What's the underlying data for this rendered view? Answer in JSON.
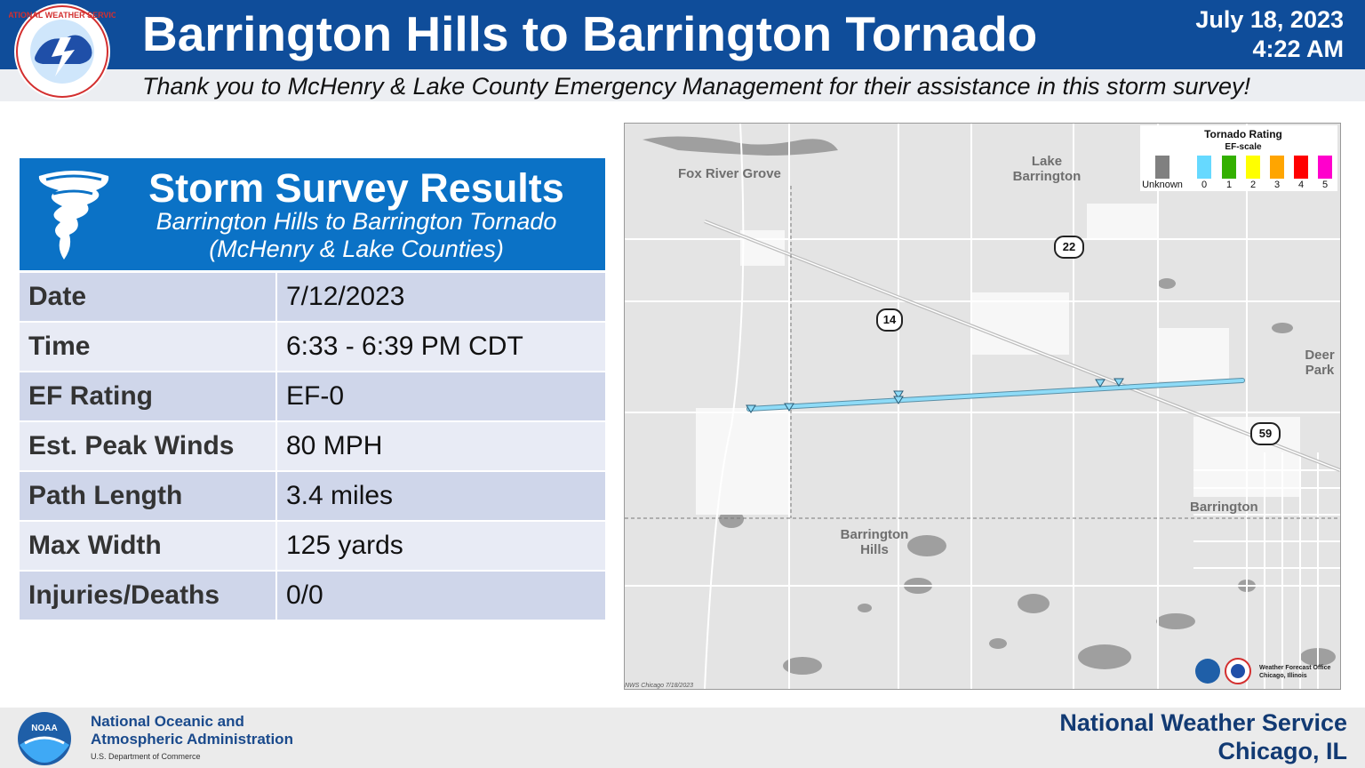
{
  "header": {
    "title": "Barrington Hills to Barrington Tornado",
    "date": "July 18, 2023",
    "time": "4:22 AM",
    "thanks": "Thank you to McHenry & Lake County Emergency Management for their assistance in this storm survey!",
    "logo_text": "NATIONAL WEATHER SERVICE"
  },
  "results": {
    "title": "Storm Survey Results",
    "subtitle_1": "Barrington Hills to Barrington Tornado",
    "subtitle_2": "(McHenry & Lake Counties)",
    "rows": [
      {
        "label": "Date",
        "value": "7/12/2023"
      },
      {
        "label": "Time",
        "value": "6:33 - 6:39 PM CDT"
      },
      {
        "label": "EF Rating",
        "value": "EF-0"
      },
      {
        "label": "Est. Peak Winds",
        "value": "80 MPH"
      },
      {
        "label": "Path Length",
        "value": "3.4 miles"
      },
      {
        "label": "Max Width",
        "value": "125 yards"
      },
      {
        "label": "Injuries/Deaths",
        "value": "0/0"
      }
    ]
  },
  "map": {
    "places": {
      "fox_river_grove": "Fox River Grove",
      "lake_barrington": "Lake Barrington",
      "deer_park": "Deer Park",
      "barrington": "Barrington",
      "barrington_hills": "Barrington Hills"
    },
    "routes": {
      "r22": "22",
      "r14": "14",
      "r59": "59"
    },
    "legend": {
      "title": "Tornado Rating",
      "subtitle": "EF-scale",
      "items": [
        {
          "label": "Unknown",
          "color": "#808080"
        },
        {
          "label": "0",
          "color": "#66d9ff"
        },
        {
          "label": "1",
          "color": "#33b000"
        },
        {
          "label": "2",
          "color": "#ffff00"
        },
        {
          "label": "3",
          "color": "#ffa500"
        },
        {
          "label": "4",
          "color": "#ff0000"
        },
        {
          "label": "5",
          "color": "#ff00cc"
        }
      ]
    },
    "credit": "NWS Chicago 7/18/2023",
    "wfo_line1": "Weather Forecast Office",
    "wfo_line2": "Chicago, Illinois",
    "track_color": "#7fd3f0"
  },
  "footer": {
    "noaa_line1": "National Oceanic and",
    "noaa_line2": "Atmospheric Administration",
    "noaa_dept": "U.S. Department of Commerce",
    "office_line1": "National Weather Service",
    "office_line2": "Chicago, IL",
    "noaa_logo_text": "NOAA"
  },
  "colors": {
    "header_bg": "#0f4d9a",
    "card_bg": "#0b72c6",
    "row_odd": "#cfd6ea",
    "row_even": "#e8ebf5",
    "office_text": "#123a73"
  }
}
